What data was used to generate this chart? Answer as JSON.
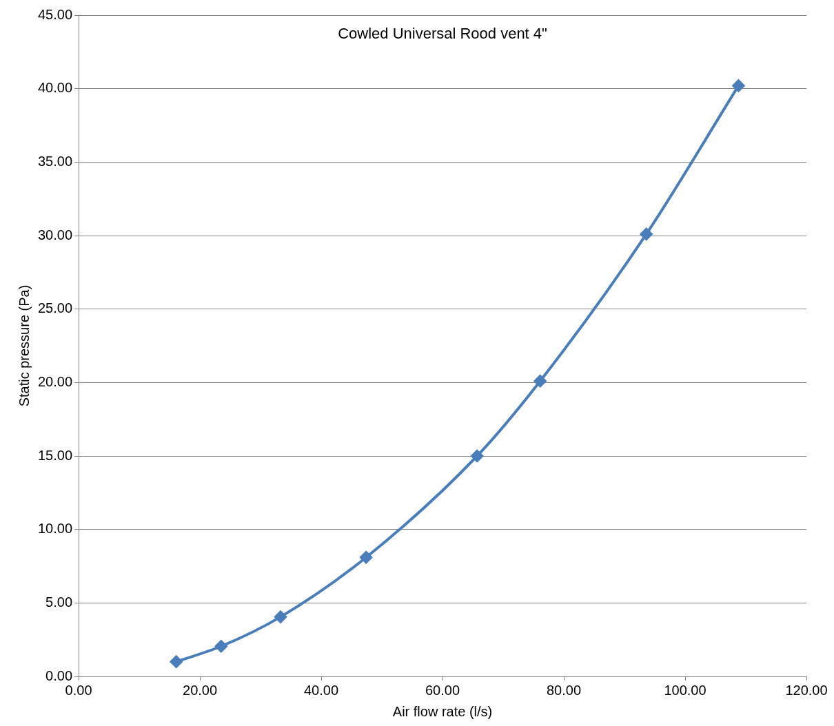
{
  "chart_data": {
    "type": "line",
    "title": "Cowled Universal Rood vent 4\"",
    "xlabel": "Air flow rate (l/s)",
    "ylabel": "Static pressure (Pa)",
    "x": [
      16.1,
      23.5,
      33.3,
      47.4,
      65.7,
      76.1,
      93.6,
      108.8
    ],
    "series": [
      {
        "color": "#4a7ebb",
        "values": [
          1.0,
          2.05,
          4.05,
          8.1,
          15.0,
          20.1,
          30.1,
          40.2
        ]
      }
    ],
    "xlim": [
      0,
      120
    ],
    "xticks": [
      {
        "value": 0,
        "label": "0.00"
      },
      {
        "value": 20,
        "label": "20.00"
      },
      {
        "value": 40,
        "label": "40.00"
      },
      {
        "value": 60,
        "label": "60.00"
      },
      {
        "value": 80,
        "label": "80.00"
      },
      {
        "value": 100,
        "label": "100.00"
      },
      {
        "value": 120,
        "label": "120.00"
      }
    ],
    "ylim": [
      0,
      45
    ],
    "yticks": [
      {
        "value": 0,
        "label": "0.00"
      },
      {
        "value": 5,
        "label": "5.00"
      },
      {
        "value": 10,
        "label": "10.00"
      },
      {
        "value": 15,
        "label": "15.00"
      },
      {
        "value": 20,
        "label": "20.00"
      },
      {
        "value": 25,
        "label": "25.00"
      },
      {
        "value": 30,
        "label": "30.00"
      },
      {
        "value": 35,
        "label": "35.00"
      },
      {
        "value": 40,
        "label": "40.00"
      },
      {
        "value": 45,
        "label": "45.00"
      }
    ],
    "grid": "y",
    "legend": false,
    "marker": "diamond",
    "line_style": "solid"
  }
}
